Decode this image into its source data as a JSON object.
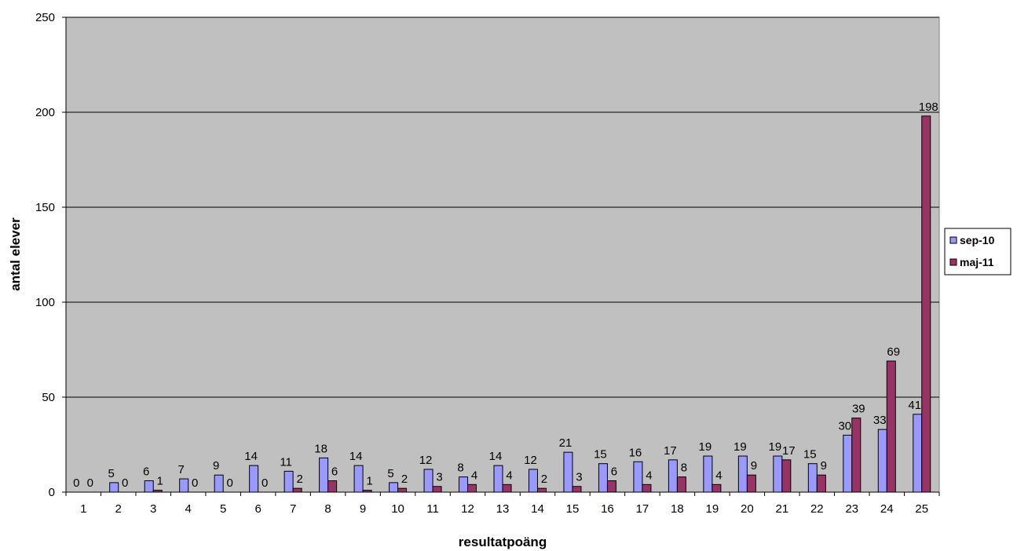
{
  "chart_data": {
    "type": "bar",
    "title": "",
    "xlabel": "resultatpoäng",
    "ylabel": "antal elever",
    "ylim": [
      0,
      250
    ],
    "yticks": [
      0,
      50,
      100,
      150,
      200,
      250
    ],
    "grid": true,
    "legend_position": "right",
    "categories": [
      "1",
      "2",
      "3",
      "4",
      "5",
      "6",
      "7",
      "8",
      "9",
      "10",
      "11",
      "12",
      "13",
      "14",
      "15",
      "16",
      "17",
      "18",
      "19",
      "20",
      "21",
      "22",
      "23",
      "24",
      "25"
    ],
    "series": [
      {
        "name": "sep-10",
        "color": "#9999ff",
        "values": [
          0,
          5,
          6,
          7,
          9,
          14,
          11,
          18,
          14,
          5,
          12,
          8,
          14,
          12,
          21,
          15,
          16,
          17,
          19,
          19,
          19,
          15,
          30,
          33,
          41
        ]
      },
      {
        "name": "maj-11",
        "color": "#993366",
        "values": [
          0,
          0,
          1,
          0,
          0,
          0,
          2,
          6,
          1,
          2,
          3,
          4,
          4,
          2,
          3,
          6,
          4,
          8,
          4,
          9,
          17,
          9,
          39,
          69,
          198
        ]
      }
    ],
    "plot_background": "#c0c0c0"
  }
}
